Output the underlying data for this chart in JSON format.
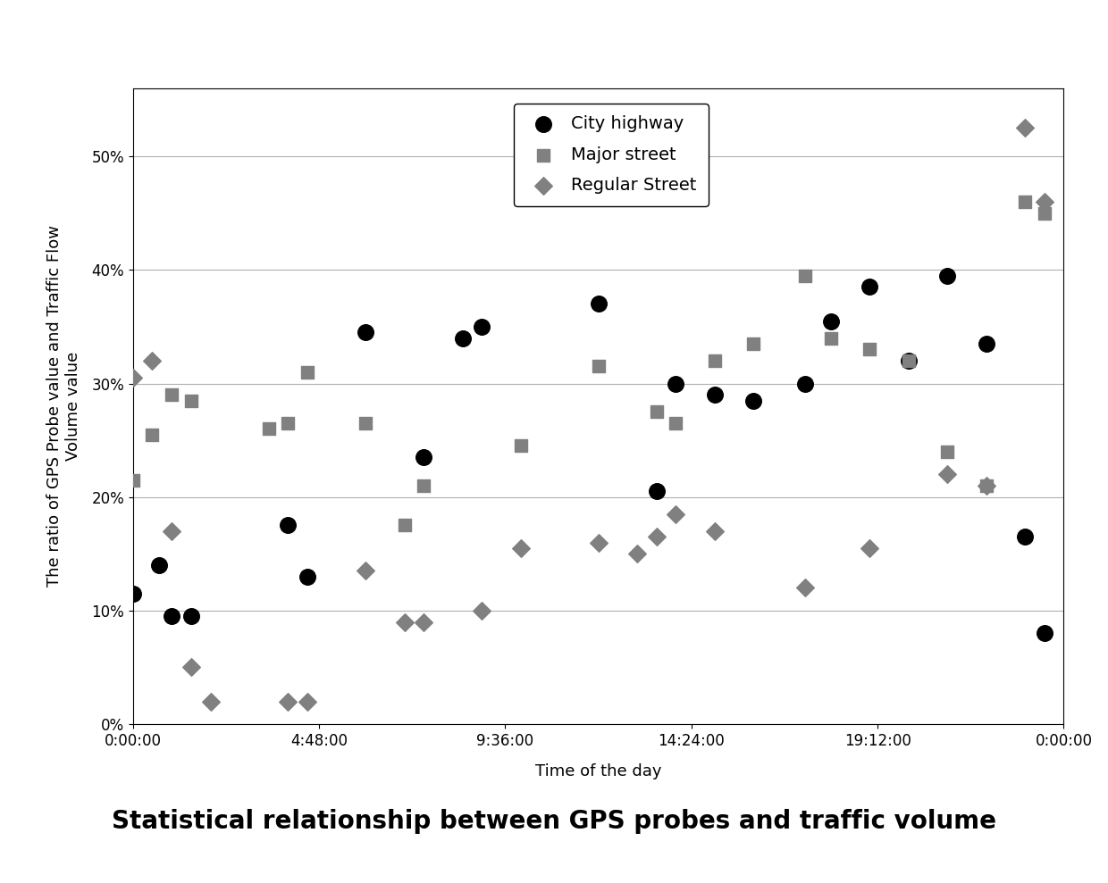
{
  "title": "Statistical relationship between GPS probes and traffic volume",
  "ylabel_line1": "The ratio of GPS Probe value and Traffic Flow",
  "ylabel_line2": "Volume value",
  "xlabel": "Time of the day",
  "ylim": [
    0.0,
    0.56
  ],
  "yticks": [
    0.0,
    0.1,
    0.2,
    0.3,
    0.4,
    0.5
  ],
  "ytick_labels": [
    "0%",
    "10%",
    "20%",
    "30%",
    "40%",
    "50%"
  ],
  "xlim": [
    0,
    86400
  ],
  "xticks": [
    0,
    17280,
    34560,
    51840,
    69120,
    86400
  ],
  "xtick_labels": [
    "0:00:00",
    "4:48:00",
    "9:36:00",
    "14:24:00",
    "19:12:00",
    "0:00:00"
  ],
  "city_highway_x": [
    0,
    2400,
    3600,
    5400,
    14400,
    16200,
    21600,
    27000,
    30600,
    32400,
    43200,
    48600,
    50400,
    54000,
    57600,
    62400,
    64800,
    68400,
    72000,
    75600,
    79200,
    82800,
    84600
  ],
  "city_highway_y": [
    0.115,
    0.14,
    0.095,
    0.095,
    0.175,
    0.13,
    0.345,
    0.235,
    0.34,
    0.35,
    0.37,
    0.205,
    0.3,
    0.29,
    0.285,
    0.3,
    0.355,
    0.385,
    0.32,
    0.395,
    0.335,
    0.165,
    0.08
  ],
  "major_street_x": [
    0,
    1800,
    3600,
    5400,
    12600,
    14400,
    16200,
    21600,
    25200,
    27000,
    36000,
    43200,
    48600,
    50400,
    54000,
    57600,
    62400,
    64800,
    68400,
    72000,
    75600,
    79200,
    82800,
    84600
  ],
  "major_street_y": [
    0.215,
    0.255,
    0.29,
    0.285,
    0.26,
    0.265,
    0.31,
    0.265,
    0.175,
    0.21,
    0.245,
    0.315,
    0.275,
    0.265,
    0.32,
    0.335,
    0.395,
    0.34,
    0.33,
    0.32,
    0.24,
    0.21,
    0.46,
    0.45
  ],
  "regular_street_x": [
    0,
    1800,
    3600,
    5400,
    7200,
    14400,
    16200,
    21600,
    25200,
    27000,
    32400,
    36000,
    43200,
    46800,
    48600,
    50400,
    54000,
    62400,
    68400,
    75600,
    79200,
    82800,
    84600
  ],
  "regular_street_y": [
    0.305,
    0.32,
    0.17,
    0.05,
    0.02,
    0.02,
    0.02,
    0.135,
    0.09,
    0.09,
    0.1,
    0.155,
    0.16,
    0.15,
    0.165,
    0.185,
    0.17,
    0.12,
    0.155,
    0.22,
    0.21,
    0.525,
    0.46
  ],
  "city_highway_color": "#000000",
  "major_street_color": "#808080",
  "regular_street_color": "#808080",
  "background_color": "#ffffff",
  "grid_color": "#b0b0b0",
  "title_fontsize": 20,
  "label_fontsize": 13,
  "tick_fontsize": 12,
  "legend_fontsize": 14
}
